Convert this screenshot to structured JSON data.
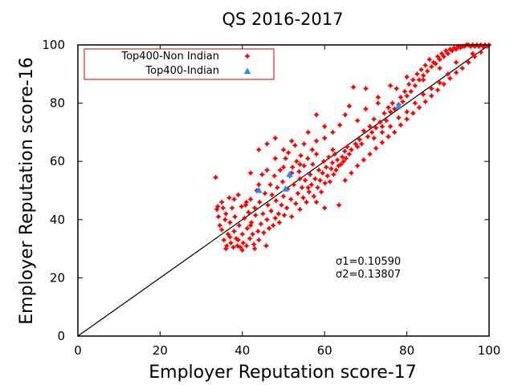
{
  "chart_data": {
    "type": "scatter",
    "title": "QS 2016-2017",
    "xlabel": "Employer Reputation score-17",
    "ylabel": "Employer Reputation score-16",
    "xlim": [
      0,
      100
    ],
    "ylim": [
      0,
      100
    ],
    "xticks": [
      0,
      20,
      40,
      60,
      80,
      100
    ],
    "yticks": [
      0,
      20,
      40,
      60,
      80,
      100
    ],
    "grid": false,
    "legend_position": "top-left",
    "reference_line": {
      "from": [
        0,
        0
      ],
      "to": [
        100,
        100
      ],
      "color": "#000000"
    },
    "annotations": [
      "σ1=0.10590",
      "σ2=0.13807"
    ],
    "series": [
      {
        "name": "Top400-Non Indian",
        "marker": "star",
        "color": "#ff0000",
        "points": [
          [
            33.5,
            54.5
          ],
          [
            33.8,
            43.5
          ],
          [
            34.2,
            41
          ],
          [
            34.5,
            38
          ],
          [
            35,
            36.5
          ],
          [
            35.3,
            44
          ],
          [
            35.5,
            33
          ],
          [
            35.8,
            40
          ],
          [
            36,
            42
          ],
          [
            36.2,
            31
          ],
          [
            36.5,
            35
          ],
          [
            36.8,
            47.5
          ],
          [
            37,
            39
          ],
          [
            37.2,
            32
          ],
          [
            37.5,
            44
          ],
          [
            37.8,
            30.5
          ],
          [
            38,
            36
          ],
          [
            38.2,
            41
          ],
          [
            38.5,
            33.5
          ],
          [
            38.8,
            31
          ],
          [
            39,
            48.5
          ],
          [
            39.2,
            38
          ],
          [
            39.5,
            30.5
          ],
          [
            39.8,
            44.5
          ],
          [
            40,
            35
          ],
          [
            40.2,
            32
          ],
          [
            40.5,
            40.5
          ],
          [
            40.8,
            45
          ],
          [
            41,
            31
          ],
          [
            41.2,
            37
          ],
          [
            41.5,
            42.5
          ],
          [
            41.8,
            33.5
          ],
          [
            42,
            47
          ],
          [
            42.2,
            39
          ],
          [
            42.5,
            35
          ],
          [
            42.8,
            31.5
          ],
          [
            43,
            44
          ],
          [
            43.2,
            41.5
          ],
          [
            43.5,
            50
          ],
          [
            43.8,
            36
          ],
          [
            44,
            33
          ],
          [
            44.2,
            46
          ],
          [
            44.5,
            38.5
          ],
          [
            44.8,
            55.5
          ],
          [
            45,
            42
          ],
          [
            45.2,
            35.5
          ],
          [
            45.5,
            49
          ],
          [
            45.8,
            31
          ],
          [
            46,
            40
          ],
          [
            46.2,
            45
          ],
          [
            46.5,
            37
          ],
          [
            46.8,
            52
          ],
          [
            47,
            43
          ],
          [
            47.2,
            48.5
          ],
          [
            47.5,
            38
          ],
          [
            47.8,
            55
          ],
          [
            48,
            40.5
          ],
          [
            48.2,
            46.5
          ],
          [
            48.5,
            51
          ],
          [
            48.8,
            42
          ],
          [
            49,
            39
          ],
          [
            49.2,
            57
          ],
          [
            49.5,
            45
          ],
          [
            49.8,
            53
          ],
          [
            50,
            48
          ],
          [
            50.2,
            41.5
          ],
          [
            50.5,
            61
          ],
          [
            50.8,
            44
          ],
          [
            51,
            50.5
          ],
          [
            51.2,
            63
          ],
          [
            51.5,
            55
          ],
          [
            51.8,
            47
          ],
          [
            52,
            41
          ],
          [
            52.2,
            58
          ],
          [
            52.5,
            52
          ],
          [
            52.8,
            65.5
          ],
          [
            53,
            45.5
          ],
          [
            53.2,
            60
          ],
          [
            53.5,
            49
          ],
          [
            53.8,
            56.5
          ],
          [
            54,
            43.5
          ],
          [
            54.2,
            62
          ],
          [
            54.5,
            51
          ],
          [
            54.8,
            47.5
          ],
          [
            55,
            58.5
          ],
          [
            55.3,
            53.5
          ],
          [
            55.6,
            46
          ],
          [
            55.9,
            61
          ],
          [
            56.2,
            49.5
          ],
          [
            56.5,
            55.5
          ],
          [
            56.8,
            52
          ],
          [
            57.1,
            59
          ],
          [
            57.4,
            48
          ],
          [
            57.7,
            54
          ],
          [
            58,
            62.5
          ],
          [
            58.3,
            51
          ],
          [
            58.6,
            57
          ],
          [
            58.9,
            53.5
          ],
          [
            59.2,
            49.5
          ],
          [
            59.5,
            56
          ],
          [
            59.8,
            60
          ],
          [
            60.1,
            52.5
          ],
          [
            60.4,
            58
          ],
          [
            60.7,
            55
          ],
          [
            61,
            61.5
          ],
          [
            61.3,
            53
          ],
          [
            61.6,
            57.5
          ],
          [
            61.9,
            59.5
          ],
          [
            62.2,
            55.5
          ],
          [
            62.5,
            62.5
          ],
          [
            62.8,
            57
          ],
          [
            63.1,
            60.5
          ],
          [
            63.4,
            58.5
          ],
          [
            63.7,
            72.5
          ],
          [
            64,
            59
          ],
          [
            64.3,
            61.5
          ],
          [
            64.6,
            60
          ],
          [
            64.9,
            63.5
          ],
          [
            65.2,
            61
          ],
          [
            65.5,
            65
          ],
          [
            66,
            62.5
          ],
          [
            66.5,
            64
          ],
          [
            67,
            85.5
          ],
          [
            67.5,
            66
          ],
          [
            68,
            65
          ],
          [
            68.5,
            67.5
          ],
          [
            69,
            66
          ],
          [
            69.5,
            70.5
          ],
          [
            70,
            85
          ],
          [
            70.5,
            68.5
          ],
          [
            71,
            72
          ],
          [
            71.5,
            70
          ],
          [
            72,
            74.5
          ],
          [
            72.5,
            71.5
          ],
          [
            73,
            82
          ],
          [
            73.5,
            73.5
          ],
          [
            74,
            72
          ],
          [
            74.5,
            76.5
          ],
          [
            75,
            74
          ],
          [
            75.5,
            78.5
          ],
          [
            76,
            77
          ],
          [
            76.5,
            80
          ],
          [
            77,
            78
          ],
          [
            77.5,
            85
          ],
          [
            78,
            79.5
          ],
          [
            78.5,
            82
          ],
          [
            79,
            80.5
          ],
          [
            79.5,
            84
          ],
          [
            80,
            82.5
          ],
          [
            80.5,
            86.5
          ],
          [
            81,
            84
          ],
          [
            81.5,
            88
          ],
          [
            82,
            86
          ],
          [
            82.5,
            90
          ],
          [
            83,
            88
          ],
          [
            83.5,
            91.5
          ],
          [
            84,
            89.5
          ],
          [
            84.5,
            93
          ],
          [
            85,
            91
          ],
          [
            85.5,
            95
          ],
          [
            86,
            92.5
          ],
          [
            86.5,
            94
          ],
          [
            87,
            93.5
          ],
          [
            87.5,
            96
          ],
          [
            88,
            95
          ],
          [
            88.5,
            97
          ],
          [
            89,
            96
          ],
          [
            89.5,
            98
          ],
          [
            90,
            97
          ],
          [
            90.5,
            98.5
          ],
          [
            91,
            98
          ],
          [
            91.5,
            99
          ],
          [
            92,
            98.5
          ],
          [
            92.5,
            99.5
          ],
          [
            93,
            99
          ],
          [
            93.5,
            99.5
          ],
          [
            94,
            99.5
          ],
          [
            94.5,
            100
          ],
          [
            95,
            100
          ],
          [
            95.5,
            99.5
          ],
          [
            96,
            100
          ],
          [
            96.5,
            99.5
          ],
          [
            97,
            100
          ],
          [
            97.5,
            99.5
          ],
          [
            98,
            100
          ],
          [
            98.5,
            99.5
          ],
          [
            99,
            100
          ],
          [
            99.5,
            99.5
          ],
          [
            100,
            100
          ],
          [
            63.5,
            45
          ],
          [
            65,
            53.5
          ],
          [
            66.5,
            56
          ],
          [
            68,
            58.5
          ],
          [
            69.5,
            60.5
          ],
          [
            71,
            62.5
          ],
          [
            72.5,
            64.5
          ],
          [
            74,
            66.5
          ],
          [
            75.5,
            68.5
          ],
          [
            77,
            70
          ],
          [
            78.5,
            72.5
          ],
          [
            80,
            74.5
          ],
          [
            81.5,
            76.5
          ],
          [
            83,
            78.5
          ],
          [
            84.5,
            80.5
          ],
          [
            86,
            82.5
          ],
          [
            87.5,
            84.5
          ],
          [
            89,
            86.5
          ],
          [
            90.5,
            88.5
          ],
          [
            92,
            90.5
          ],
          [
            93.5,
            92
          ],
          [
            95,
            94
          ],
          [
            96.5,
            96
          ],
          [
            98,
            97.5
          ],
          [
            34,
            44.5
          ],
          [
            35,
            46
          ],
          [
            36,
            30
          ],
          [
            37,
            34
          ],
          [
            38,
            47
          ],
          [
            39,
            33
          ],
          [
            40,
            29.5
          ],
          [
            41,
            46
          ],
          [
            42,
            38
          ],
          [
            43,
            30
          ],
          [
            44,
            64
          ],
          [
            46,
            66
          ],
          [
            48,
            68
          ],
          [
            50,
            64
          ],
          [
            52,
            67
          ],
          [
            54,
            59
          ],
          [
            56,
            70
          ],
          [
            58,
            67
          ],
          [
            60,
            68
          ],
          [
            62,
            64
          ],
          [
            42,
            56
          ],
          [
            44,
            52
          ],
          [
            46,
            57
          ],
          [
            48,
            61
          ],
          [
            50,
            58
          ],
          [
            52,
            56
          ],
          [
            54,
            54
          ],
          [
            56,
            51
          ],
          [
            58,
            46
          ],
          [
            60,
            44
          ],
          [
            72,
            68
          ],
          [
            74,
            70
          ],
          [
            76,
            72
          ],
          [
            78,
            75
          ],
          [
            80,
            77
          ],
          [
            82,
            80
          ],
          [
            84,
            83
          ],
          [
            86,
            85
          ],
          [
            88,
            87
          ],
          [
            90,
            90
          ],
          [
            70,
            78
          ],
          [
            73,
            80
          ],
          [
            76,
            86
          ],
          [
            80,
            89
          ],
          [
            84,
            88
          ],
          [
            88,
            92
          ],
          [
            92,
            94
          ],
          [
            96,
            97
          ],
          [
            65,
            76
          ],
          [
            68,
            74
          ],
          [
            62,
            70
          ],
          [
            60,
            72
          ],
          [
            57,
            64
          ],
          [
            55,
            66
          ],
          [
            58,
            76
          ],
          [
            66,
            79
          ]
        ]
      },
      {
        "name": "Top400-Indian",
        "marker": "triangle",
        "color": "#1e90ff",
        "points": [
          [
            44,
            50
          ],
          [
            50.5,
            50.5
          ],
          [
            51.5,
            55.5
          ],
          [
            78,
            79
          ]
        ]
      }
    ]
  }
}
